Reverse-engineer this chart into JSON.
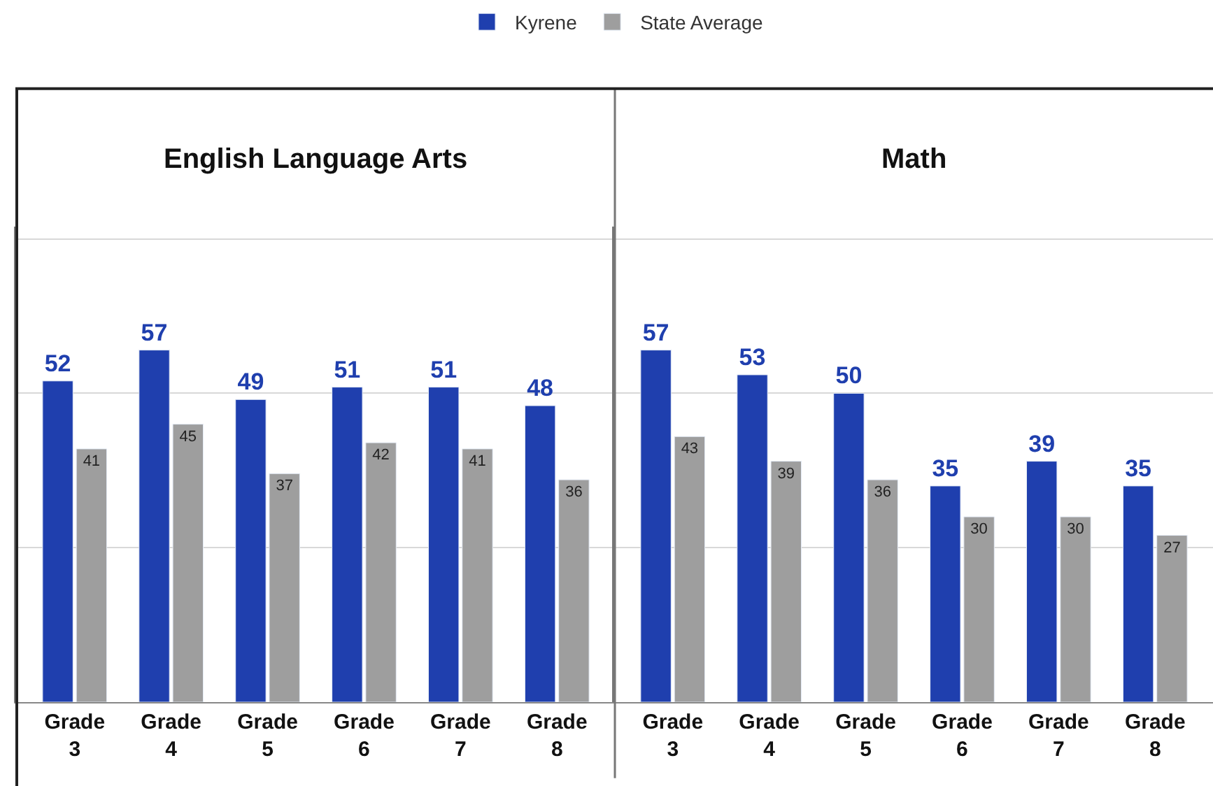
{
  "chart_data": [
    {
      "type": "bar",
      "title": "English Language Arts",
      "categories": [
        "Grade 3",
        "Grade 4",
        "Grade 5",
        "Grade 6",
        "Grade 7",
        "Grade 8"
      ],
      "series": [
        {
          "name": "Kyrene",
          "color": "#1f3fae",
          "values": [
            52,
            57,
            49,
            51,
            51,
            48
          ]
        },
        {
          "name": "State Average",
          "color": "#9e9e9e",
          "values": [
            41,
            45,
            37,
            42,
            41,
            36
          ]
        }
      ],
      "ylim": [
        0,
        77
      ],
      "yticks": [
        {
          "value": 0,
          "label": null
        },
        {
          "value": 25,
          "label": null
        },
        {
          "value": 50,
          "label": null
        },
        {
          "value": 75,
          "label": null
        }
      ],
      "grid": "y",
      "legend": "top",
      "data_labels": true,
      "tick_labels": "x"
    },
    {
      "type": "bar",
      "title": "Math",
      "categories": [
        "Grade 3",
        "Grade 4",
        "Grade 5",
        "Grade 6",
        "Grade 7",
        "Grade 8"
      ],
      "series": [
        {
          "color": "#1f3fae",
          "values": [
            57,
            53,
            50,
            35,
            39,
            35
          ]
        },
        {
          "color": "#9e9e9e",
          "values": [
            43,
            39,
            36,
            30,
            30,
            27
          ]
        }
      ],
      "ylim": [
        0,
        77
      ],
      "yticks": [
        {
          "value": 0,
          "label": null
        },
        {
          "value": 25,
          "label": null
        },
        {
          "value": 50,
          "label": null
        },
        {
          "value": 75,
          "label": null
        }
      ],
      "grid": "y",
      "data_labels": true,
      "tick_labels": "x"
    }
  ]
}
